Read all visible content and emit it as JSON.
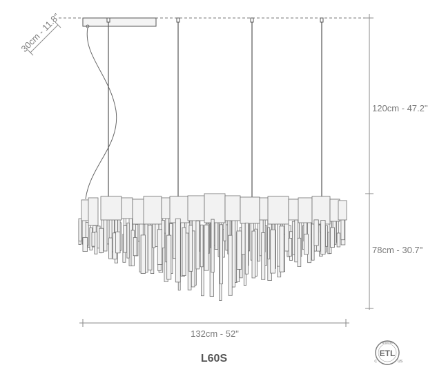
{
  "dimensions": {
    "canopy_depth": "30cm - 11.8\"",
    "suspension_height": "120cm - 47.2\"",
    "body_height": "78cm - 30.7\"",
    "width": "132cm - 52\""
  },
  "model": "L60S",
  "certification": {
    "main": "ETL",
    "left": "C",
    "right": "US",
    "ring_text": "INTERTEK"
  },
  "colors": {
    "line": "#555555",
    "dim_line": "#8a8a8a",
    "text": "#7a7a7a",
    "crystal_fill": "#f2f2f2",
    "crystal_stroke": "#6e6e6e"
  }
}
